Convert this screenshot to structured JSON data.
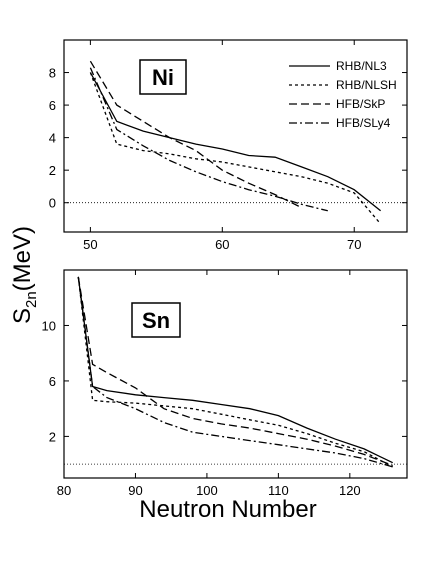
{
  "chart_data": {
    "type": "line",
    "ylabel": "S",
    "ylabel_sub": "2n",
    "ylabel_unit": "(MeV)",
    "xlabel": "Neutron Number",
    "legend": {
      "placement": "top-right",
      "entries": [
        {
          "name": "RHB/NL3",
          "dash": "solid"
        },
        {
          "name": "RHB/NLSH",
          "dash": "short-dash"
        },
        {
          "name": "HFB/SkP",
          "dash": "long-dash"
        },
        {
          "name": "HFB/SLy4",
          "dash": "dash-dot"
        }
      ]
    },
    "panels": [
      {
        "label": "Ni",
        "xlim": [
          48,
          74
        ],
        "ylim": [
          -1.8,
          10
        ],
        "xticks": [
          50,
          60,
          70
        ],
        "yticks": [
          0,
          2,
          4,
          6,
          8
        ],
        "reference_line_y": 0,
        "series": [
          {
            "name": "RHB/NL3",
            "dash": "solid",
            "x": [
              50,
              52,
              54,
              56,
              58,
              60,
              62,
              64,
              66,
              68,
              70,
              72
            ],
            "y": [
              8.0,
              5.0,
              4.4,
              4.0,
              3.6,
              3.3,
              2.9,
              2.8,
              2.2,
              1.6,
              0.8,
              -0.5
            ]
          },
          {
            "name": "RHB/NLSH",
            "dash": "short-dash",
            "x": [
              50,
              52,
              54,
              56,
              58,
              60,
              62,
              64,
              66,
              68,
              70,
              72
            ],
            "y": [
              8.0,
              3.6,
              3.2,
              3.0,
              2.7,
              2.5,
              2.2,
              1.9,
              1.6,
              1.2,
              0.6,
              -1.3
            ]
          },
          {
            "name": "HFB/SkP",
            "dash": "long-dash",
            "x": [
              50,
              52,
              54,
              56,
              58,
              60,
              62,
              64,
              66
            ],
            "y": [
              8.7,
              6.0,
              5.0,
              4.0,
              3.2,
              2.0,
              1.2,
              0.5,
              -0.3
            ]
          },
          {
            "name": "HFB/SLy4",
            "dash": "dash-dot",
            "x": [
              50,
              52,
              54,
              56,
              58,
              60,
              62,
              64,
              66,
              68
            ],
            "y": [
              8.3,
              4.5,
              3.5,
              2.6,
              1.9,
              1.3,
              0.8,
              0.4,
              -0.1,
              -0.5
            ]
          }
        ]
      },
      {
        "label": "Sn",
        "xlim": [
          80,
          128
        ],
        "ylim": [
          -1,
          14
        ],
        "xticks": [
          80,
          90,
          100,
          110,
          120
        ],
        "yticks": [
          2,
          6,
          10
        ],
        "reference_line_y": 0,
        "series": [
          {
            "name": "RHB/NL3",
            "dash": "solid",
            "x": [
              82,
              84,
              86,
              90,
              94,
              98,
              102,
              106,
              110,
              114,
              118,
              122,
              126
            ],
            "y": [
              13.5,
              5.6,
              5.3,
              5.0,
              4.8,
              4.6,
              4.3,
              4.0,
              3.5,
              2.6,
              1.8,
              1.1,
              0.1
            ]
          },
          {
            "name": "RHB/NLSH",
            "dash": "short-dash",
            "x": [
              82,
              84,
              86,
              90,
              94,
              98,
              102,
              106,
              110,
              114,
              118,
              122,
              126
            ],
            "y": [
              13.5,
              4.6,
              4.5,
              4.4,
              4.2,
              4.0,
              3.6,
              3.2,
              2.8,
              2.2,
              1.5,
              0.9,
              -0.2
            ]
          },
          {
            "name": "HFB/SkP",
            "dash": "long-dash",
            "x": [
              82,
              84,
              86,
              90,
              94,
              98,
              102,
              106,
              110,
              114,
              118,
              122,
              126
            ],
            "y": [
              13.5,
              7.2,
              6.6,
              5.5,
              4.0,
              3.3,
              2.9,
              2.6,
              2.2,
              1.8,
              1.3,
              0.7,
              -0.1
            ]
          },
          {
            "name": "HFB/SLy4",
            "dash": "dash-dot",
            "x": [
              82,
              84,
              86,
              90,
              94,
              98,
              102,
              106,
              110,
              114,
              118,
              122,
              126
            ],
            "y": [
              13.5,
              5.6,
              4.8,
              4.0,
              3.0,
              2.3,
              2.0,
              1.7,
              1.4,
              1.1,
              0.8,
              0.4,
              -0.2
            ]
          }
        ]
      }
    ]
  }
}
